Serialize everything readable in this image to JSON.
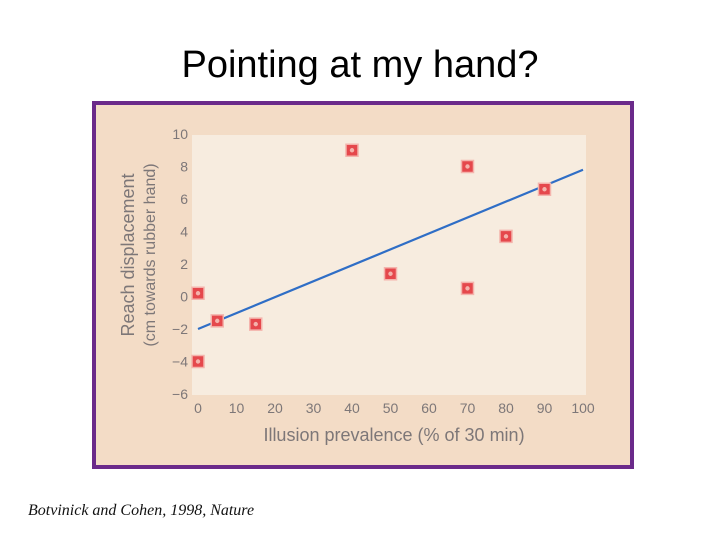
{
  "slide": {
    "title": "Pointing at my hand?",
    "citation": "Botvinick and Cohen, 1998, Nature"
  },
  "chart_data": {
    "type": "scatter",
    "xlabel": "Illusion prevalence (% of 30 min)",
    "ylabel_line1": "Reach displacement",
    "ylabel_line2": "(cm towards rubber hand)",
    "xlim": [
      0,
      100
    ],
    "ylim": [
      -6,
      10
    ],
    "xticks": [
      0,
      10,
      20,
      30,
      40,
      50,
      60,
      70,
      80,
      90,
      100
    ],
    "yticks": [
      -6,
      -4,
      -2,
      0,
      2,
      4,
      6,
      8,
      10
    ],
    "points": [
      {
        "x": 0,
        "y": 0.2
      },
      {
        "x": 0,
        "y": -4
      },
      {
        "x": 5,
        "y": -1.5
      },
      {
        "x": 15,
        "y": -1.7
      },
      {
        "x": 40,
        "y": 9
      },
      {
        "x": 50,
        "y": 1.4
      },
      {
        "x": 70,
        "y": 8
      },
      {
        "x": 70,
        "y": 0.5
      },
      {
        "x": 80,
        "y": 3.7
      },
      {
        "x": 90,
        "y": 6.6
      }
    ],
    "trendline": {
      "x": [
        0,
        100
      ],
      "y": [
        -2.0,
        7.8
      ]
    },
    "grid": false,
    "colors": {
      "outer_bg": "#f3dcc6",
      "plot_bg": "#f7ecdf",
      "text": "#7d7778",
      "marker_fill": "#e5484c",
      "marker_edge": "#f4b3ac",
      "trendline": "#2f6ec6",
      "frame": "#6b2a8a"
    }
  }
}
